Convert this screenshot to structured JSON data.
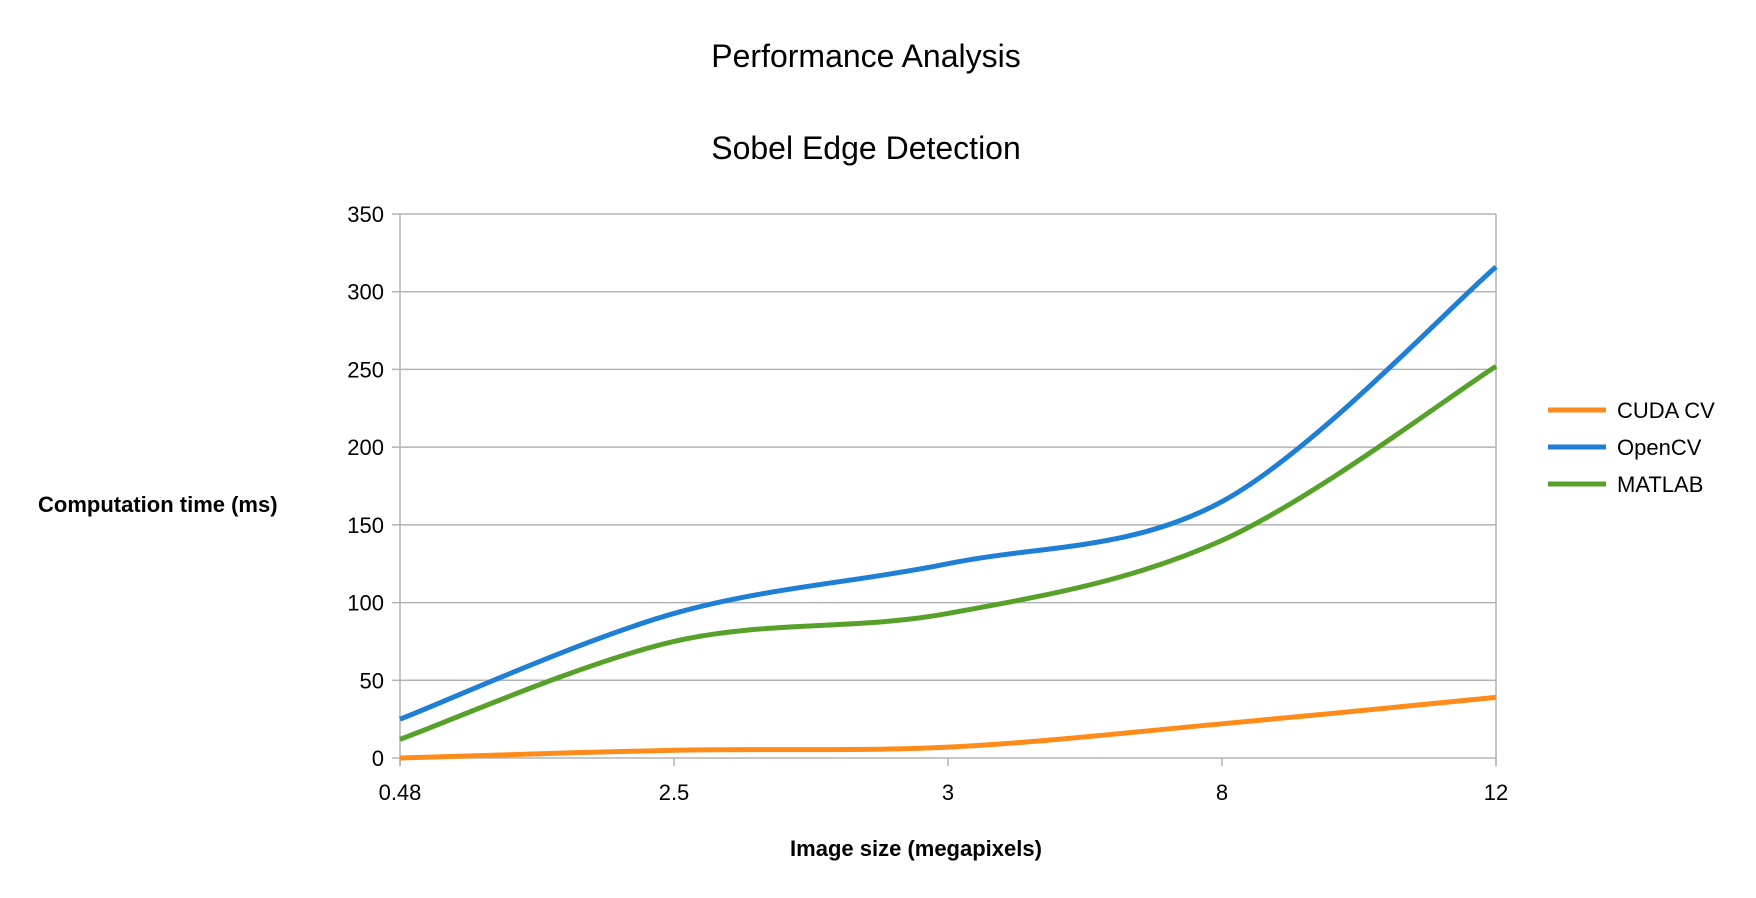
{
  "chart_data": {
    "type": "line",
    "title": "Performance Analysis",
    "subtitle": "Sobel Edge Detection",
    "xlabel": "Image size (megapixels)",
    "ylabel": "Computation time (ms)",
    "categories": [
      "0.48",
      "2.5",
      "3",
      "8",
      "12"
    ],
    "ylim": [
      0,
      350
    ],
    "yticks": [
      0,
      50,
      100,
      150,
      200,
      250,
      300,
      350
    ],
    "grid": true,
    "legend_position": "right",
    "series": [
      {
        "name": "CUDA CV",
        "color": "#ff8c1a",
        "values": [
          0,
          5,
          7,
          22,
          39
        ]
      },
      {
        "name": "OpenCV",
        "color": "#1e7fd4",
        "values": [
          25,
          93,
          125,
          165,
          316
        ]
      },
      {
        "name": "MATLAB",
        "color": "#57a12b",
        "values": [
          12,
          75,
          93,
          140,
          252
        ]
      }
    ]
  }
}
